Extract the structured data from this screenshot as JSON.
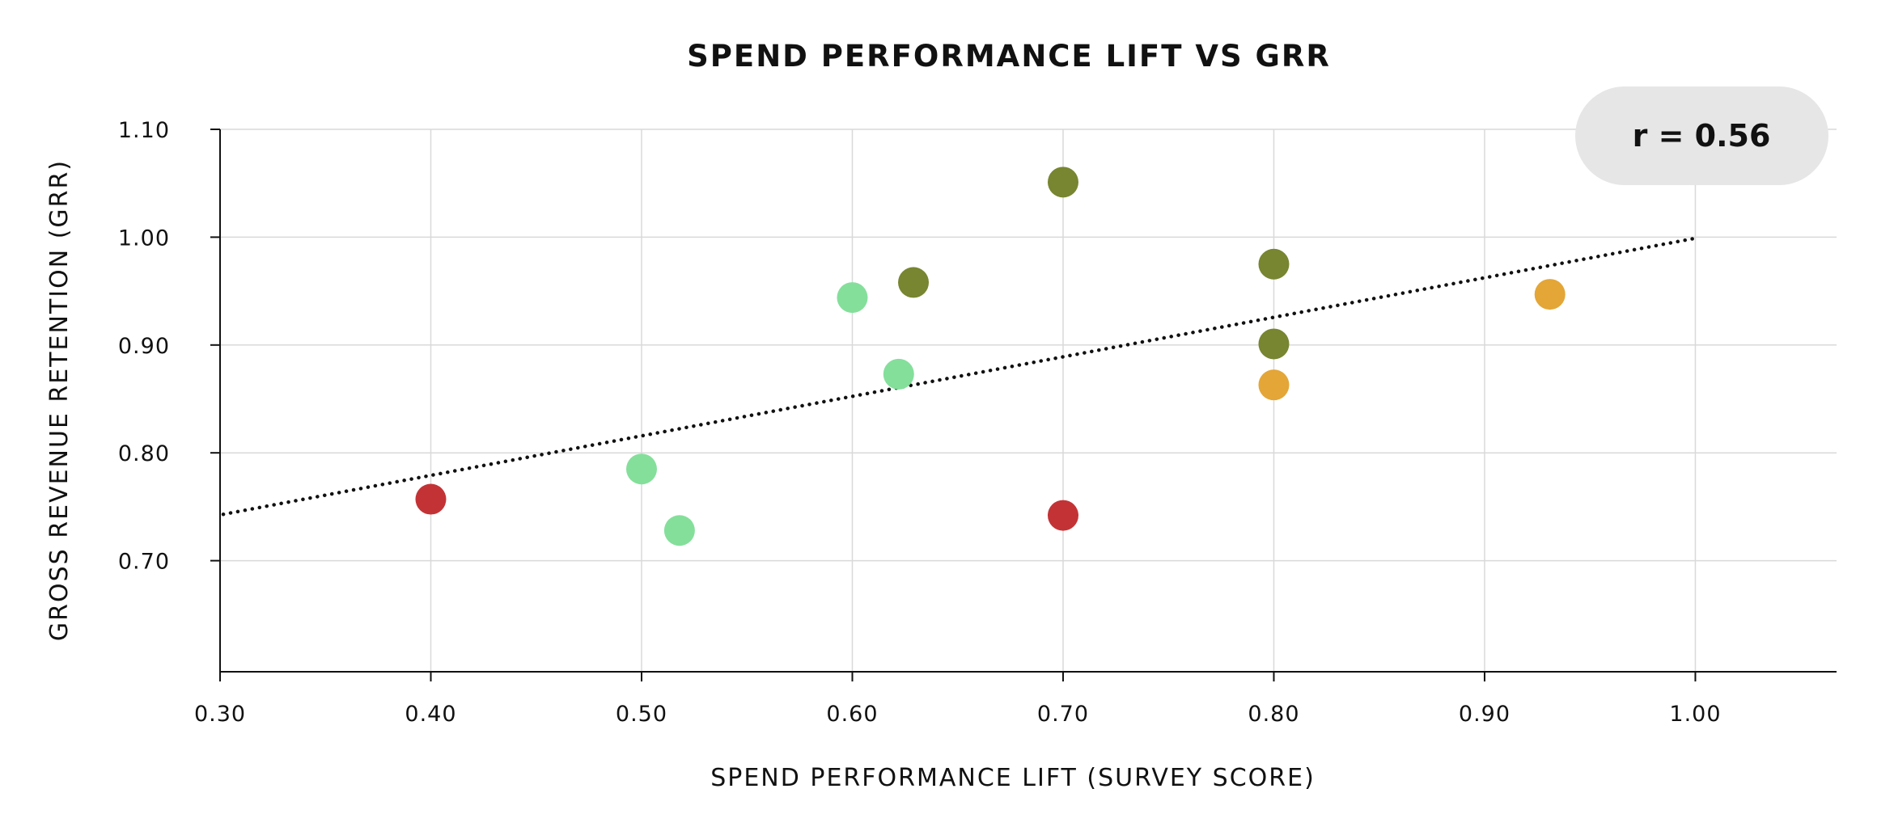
{
  "chart_data": {
    "type": "scatter",
    "title": "SPEND PERFORMANCE LIFT VS GRR",
    "xlabel": "SPEND PERFORMANCE LIFT (SURVEY SCORE)",
    "ylabel": "GROSS REVENUE RETENTION (GRR)",
    "xlim": [
      0.3,
      1.067
    ],
    "ylim": [
      0.597,
      1.1
    ],
    "x_ticks": [
      0.3,
      0.4,
      0.5,
      0.6,
      0.7,
      0.8,
      0.9,
      1.0
    ],
    "x_tick_labels": [
      "0.30",
      "0.40",
      "0.50",
      "0.60",
      "0.70",
      "0.80",
      "0.90",
      "1.00"
    ],
    "y_ticks": [
      0.7,
      0.8,
      0.9,
      1.0,
      1.1
    ],
    "y_tick_labels": [
      "0.70",
      "0.80",
      "0.90",
      "1.00",
      "1.10"
    ],
    "grid": true,
    "annotation": "r = 0.56",
    "trendline": {
      "style": "dotted",
      "x": [
        0.3,
        1.0
      ],
      "y": [
        0.743,
        0.999
      ],
      "color": "#111111"
    },
    "points": [
      {
        "x": 0.4,
        "y": 0.757,
        "color": "#c33336"
      },
      {
        "x": 0.7,
        "y": 0.742,
        "color": "#c33336"
      },
      {
        "x": 0.5,
        "y": 0.785,
        "color": "#84df9b"
      },
      {
        "x": 0.518,
        "y": 0.728,
        "color": "#84df9b"
      },
      {
        "x": 0.6,
        "y": 0.944,
        "color": "#84df9b"
      },
      {
        "x": 0.622,
        "y": 0.873,
        "color": "#84df9b"
      },
      {
        "x": 0.629,
        "y": 0.958,
        "color": "#788531"
      },
      {
        "x": 0.7,
        "y": 1.051,
        "color": "#788531"
      },
      {
        "x": 0.8,
        "y": 0.975,
        "color": "#788531"
      },
      {
        "x": 0.8,
        "y": 0.901,
        "color": "#788531"
      },
      {
        "x": 0.8,
        "y": 0.863,
        "color": "#e3a637"
      },
      {
        "x": 0.931,
        "y": 0.947,
        "color": "#e3a637"
      }
    ]
  }
}
